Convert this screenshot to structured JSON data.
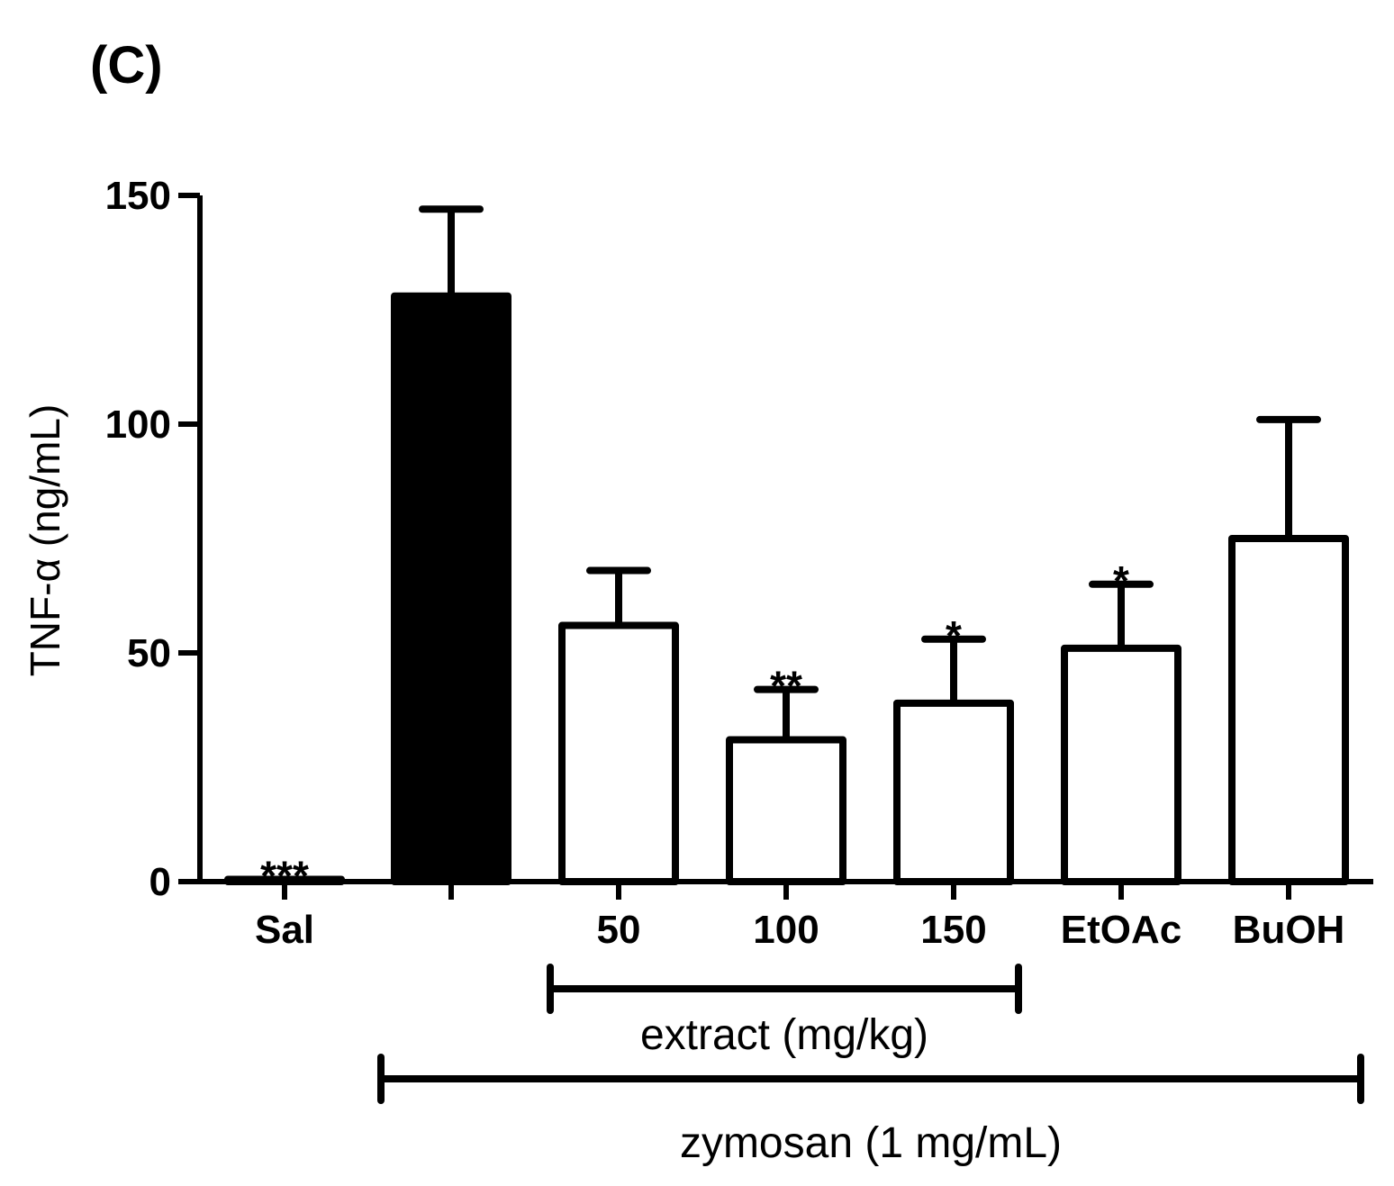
{
  "panel_label": "(C)",
  "chart_data": {
    "type": "bar",
    "title": "",
    "xlabel": "",
    "ylabel": "TNF-α (ng/mL)",
    "ylim": [
      0,
      150
    ],
    "yticks": [
      0,
      50,
      100,
      150
    ],
    "grid": false,
    "categories": [
      "Sal",
      "",
      "50",
      "100",
      "150",
      "EtOAc",
      "BuOH"
    ],
    "values": [
      0.5,
      128,
      56,
      31,
      39,
      51,
      75
    ],
    "errors": [
      0.5,
      19,
      12,
      11,
      14,
      14,
      26
    ],
    "fills": [
      "#ffffff",
      "#000000",
      "#ffffff",
      "#ffffff",
      "#ffffff",
      "#ffffff",
      "#ffffff"
    ],
    "significance": [
      "***",
      "",
      "",
      "**",
      "*",
      "*",
      ""
    ],
    "groups": [
      {
        "label": "extract (mg/kg)",
        "from_index": 2,
        "to_index": 4
      },
      {
        "label": "zymosan (1 mg/mL)",
        "from_index": 1,
        "to_index": 6
      }
    ]
  }
}
